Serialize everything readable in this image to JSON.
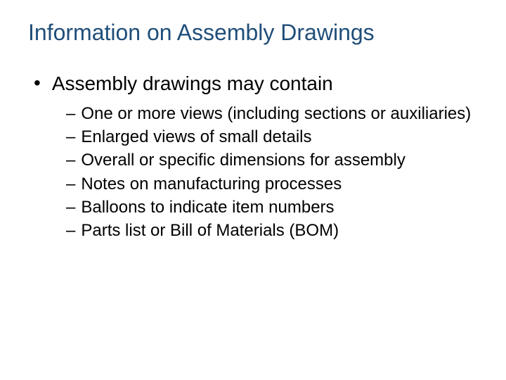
{
  "slide": {
    "title": "Information on Assembly Drawings",
    "title_color": "#1f4e79",
    "title_fontsize": 32,
    "body_color": "#000000",
    "body_fontsize_l1": 28,
    "body_fontsize_l2": 24,
    "background_color": "#ffffff",
    "bullets": {
      "l1": {
        "marker": "•",
        "text": "Assembly drawings may contain"
      },
      "l2": [
        {
          "marker": "–",
          "text": "One or more views (including sections or auxiliaries)"
        },
        {
          "marker": "–",
          "text": "Enlarged views of small details"
        },
        {
          "marker": "–",
          "text": "Overall or specific dimensions for assembly"
        },
        {
          "marker": "–",
          "text": "Notes on manufacturing processes"
        },
        {
          "marker": "–",
          "text": "Balloons to indicate item numbers"
        },
        {
          "marker": "–",
          "text": "Parts list or Bill of Materials (BOM)"
        }
      ]
    }
  }
}
